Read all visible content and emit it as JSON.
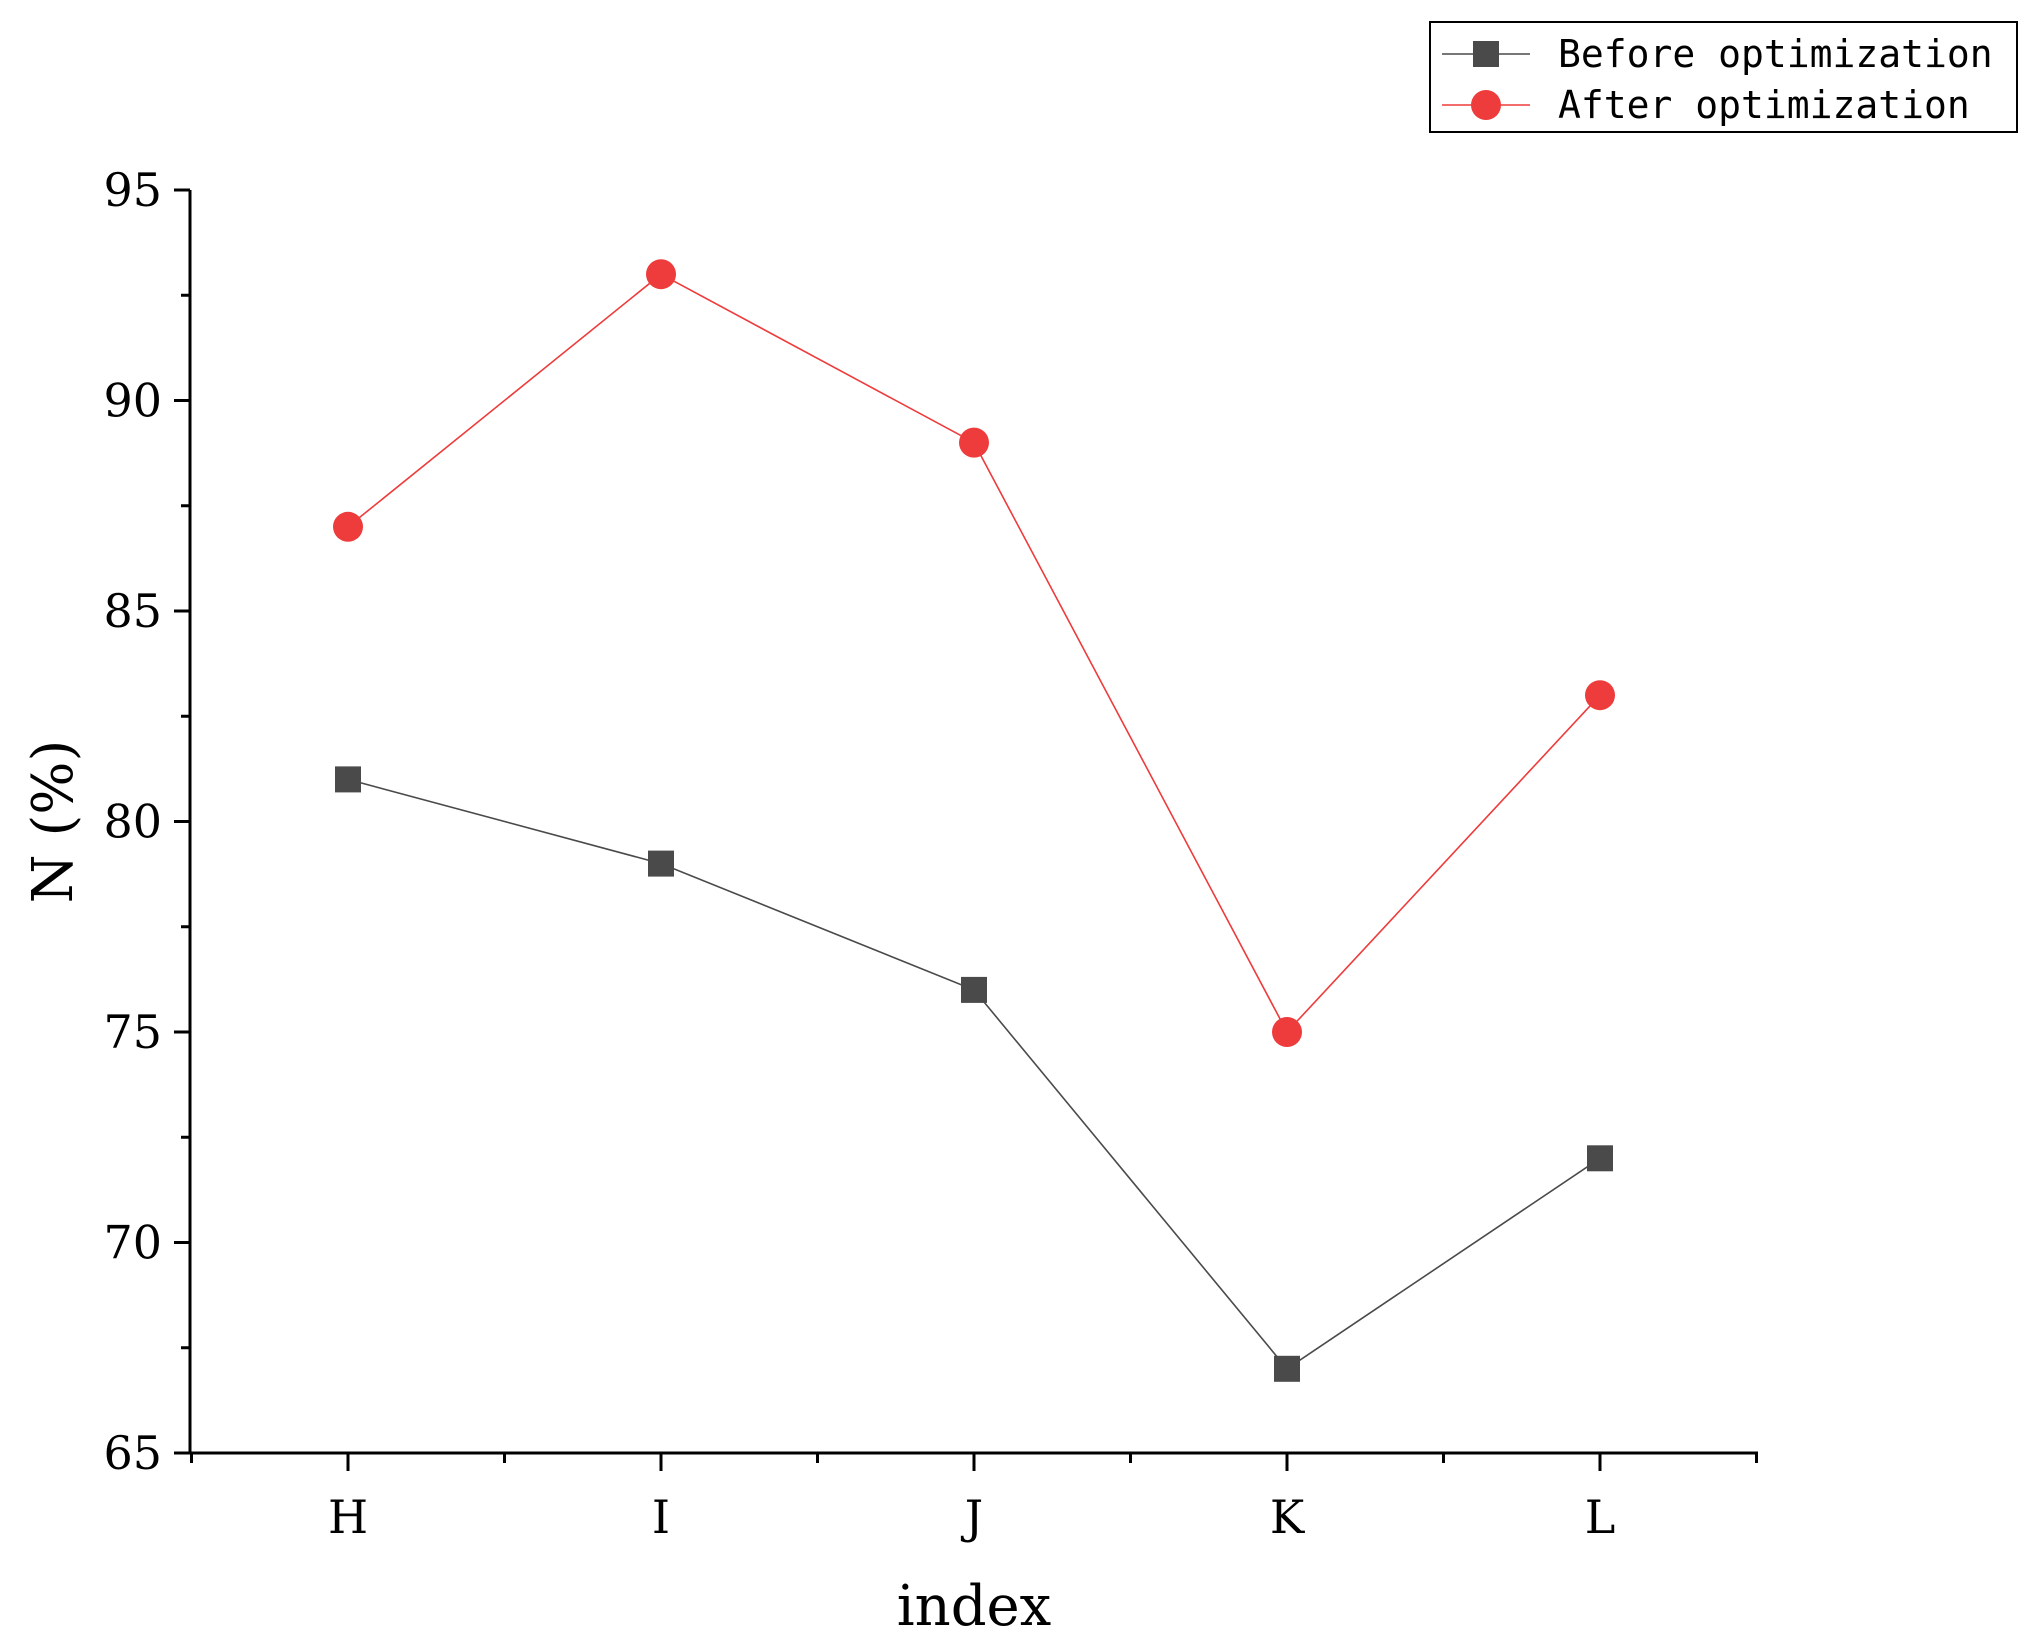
{
  "chart_data": {
    "type": "line",
    "categories": [
      "H",
      "I",
      "J",
      "K",
      "L"
    ],
    "series": [
      {
        "name": "Before optimization",
        "values": [
          81,
          79,
          76,
          67,
          72
        ],
        "color": "#4a4a4a",
        "marker": "square"
      },
      {
        "name": "After optimization",
        "values": [
          87,
          93,
          89,
          75,
          83
        ],
        "color": "#ee3b3b",
        "marker": "circle"
      }
    ],
    "xlabel": "index",
    "ylabel": "N (%)",
    "ylim": [
      65,
      95
    ],
    "yticks": [
      65,
      70,
      75,
      80,
      85,
      90,
      95
    ],
    "grid": false,
    "legend_position": "top-right"
  }
}
